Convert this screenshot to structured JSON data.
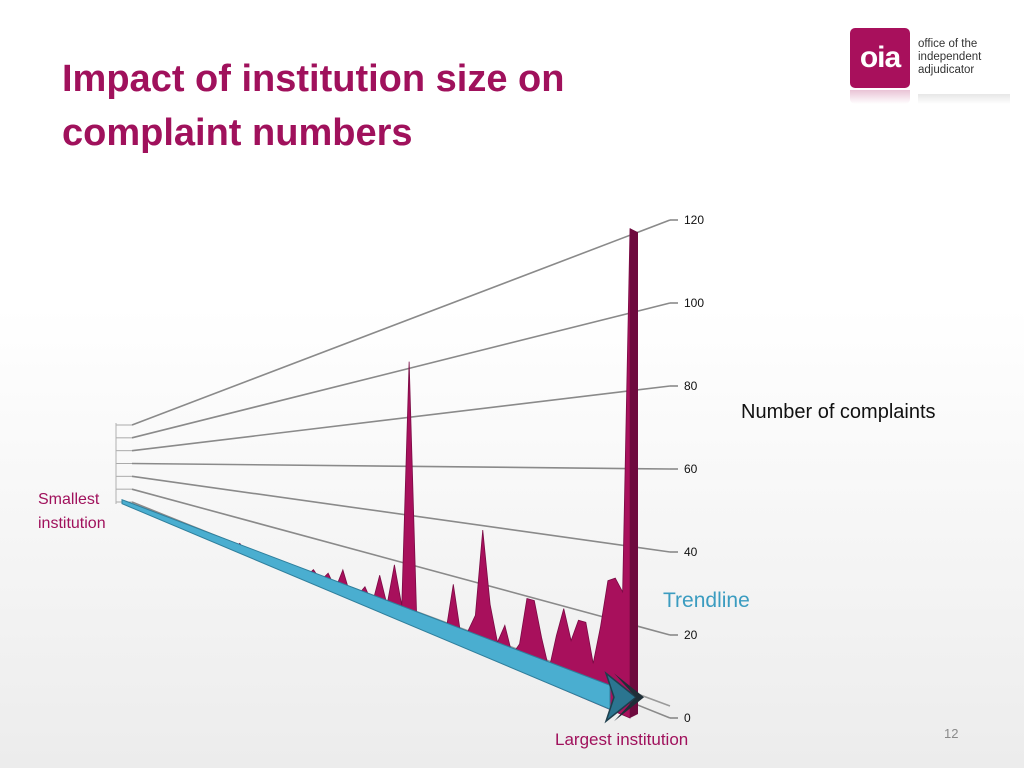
{
  "slide": {
    "title": "Impact of institution size on complaint numbers",
    "page_number": "12"
  },
  "logo": {
    "mark": "oia",
    "lines": [
      "office of the",
      "independent",
      "adjudicator"
    ],
    "brand_color": "#a8105c"
  },
  "labels": {
    "y_axis_title": "Number of complaints",
    "smallest": "Smallest institution",
    "largest": "Largest institution",
    "trendline": "Trendline"
  },
  "chart_data": {
    "type": "area",
    "title": "Impact of institution size on complaint numbers",
    "xlabel_start": "Smallest institution",
    "xlabel_end": "Largest institution",
    "ylabel": "Number of complaints",
    "ylim": [
      0,
      120
    ],
    "yticks": [
      0,
      20,
      40,
      60,
      80,
      100,
      120
    ],
    "grid": true,
    "perspective": "3d",
    "series": [
      {
        "name": "Complaints",
        "color": "#a8105c",
        "values": [
          1,
          1,
          3,
          1,
          1,
          2,
          2,
          1,
          1,
          2,
          1,
          4,
          1,
          2,
          1,
          1,
          6,
          1,
          1,
          2,
          1,
          1,
          4,
          2,
          4,
          2,
          7,
          3,
          8,
          2,
          12,
          2,
          3,
          8,
          2,
          15,
          4,
          21,
          6,
          100,
          6,
          1,
          2,
          4,
          3,
          20,
          4,
          6,
          12,
          40,
          17,
          6,
          12,
          4,
          8,
          22,
          22,
          12,
          4,
          14,
          22,
          14,
          20,
          20,
          10,
          20,
          32,
          33,
          30,
          118
        ]
      },
      {
        "name": "Trendline",
        "color": "#4aaed0",
        "values": [
          0.5,
          5
        ]
      }
    ]
  }
}
